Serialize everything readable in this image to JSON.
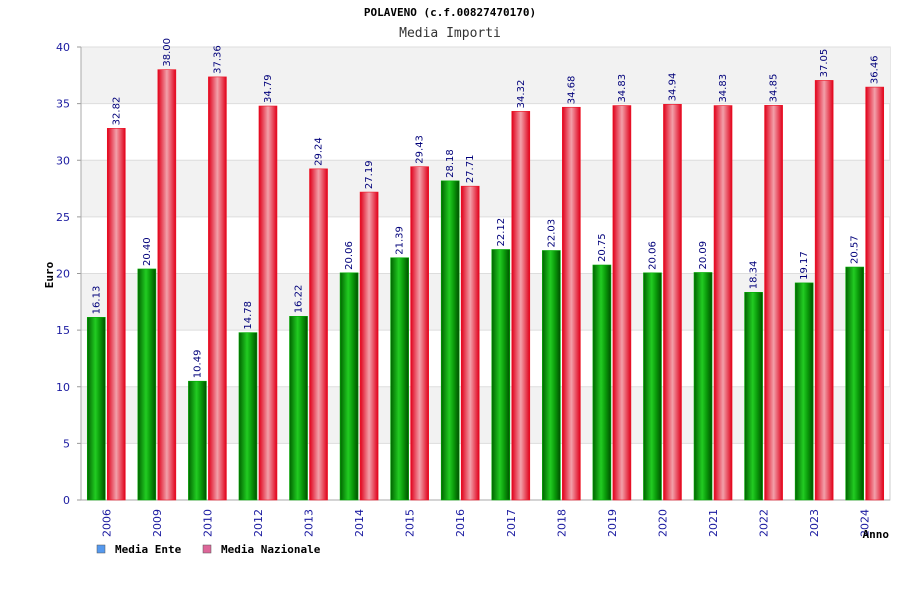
{
  "chart_data": {
    "type": "bar",
    "title": "POLAVENO (c.f.00827470170)",
    "subtitle": "Media Importi",
    "xlabel": "Anno",
    "ylabel": "Euro",
    "ylim": [
      0,
      40
    ],
    "yticks": [
      0,
      5,
      10,
      15,
      20,
      25,
      30,
      35,
      40
    ],
    "grid": true,
    "legend_position": "bottom-left",
    "categories": [
      "2006",
      "2009",
      "2010",
      "2012",
      "2013",
      "2014",
      "2015",
      "2016",
      "2017",
      "2018",
      "2019",
      "2020",
      "2021",
      "2022",
      "2023",
      "2024"
    ],
    "series": [
      {
        "name": "Media Ente",
        "legend_color": "#5599ee",
        "bar_color": "#00aa00",
        "values": [
          16.13,
          20.4,
          10.49,
          14.78,
          16.22,
          20.06,
          21.39,
          28.18,
          22.12,
          22.03,
          20.75,
          20.06,
          20.09,
          18.34,
          19.17,
          20.57
        ],
        "labels": [
          "16.13",
          "20.40",
          "10.49",
          "14.78",
          "16.22",
          "20.06",
          "21.39",
          "28.18",
          "22.12",
          "22.03",
          "20.75",
          "20.06",
          "20.09",
          "18.34",
          "19.17",
          "20.57"
        ]
      },
      {
        "name": "Media Nazionale",
        "legend_color": "#dd6699",
        "bar_color": "#ee1122",
        "values": [
          32.82,
          38.0,
          37.36,
          34.79,
          29.24,
          27.19,
          29.43,
          27.71,
          34.32,
          34.68,
          34.83,
          34.94,
          34.83,
          34.85,
          37.05,
          36.46
        ],
        "labels": [
          "32.82",
          "38.00",
          "37.36",
          "34.79",
          "29.24",
          "27.19",
          "29.43",
          "27.71",
          "34.32",
          "34.68",
          "34.83",
          "34.94",
          "34.83",
          "34.85",
          "37.05",
          "36.46"
        ]
      }
    ]
  }
}
